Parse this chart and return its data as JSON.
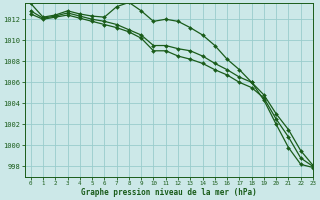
{
  "x": [
    0,
    1,
    2,
    3,
    4,
    5,
    6,
    7,
    8,
    9,
    10,
    11,
    12,
    13,
    14,
    15,
    16,
    17,
    18,
    19,
    20,
    21,
    22,
    23
  ],
  "line1": [
    1013.5,
    1012.2,
    1012.4,
    1012.8,
    1012.5,
    1012.3,
    1012.2,
    1013.2,
    1013.6,
    1012.8,
    1011.8,
    1012.0,
    1011.8,
    1011.2,
    1010.5,
    1009.5,
    1008.2,
    1007.2,
    1006.0,
    1004.3,
    1002.0,
    999.8,
    998.2,
    997.9
  ],
  "line2": [
    1012.8,
    1012.1,
    1012.3,
    1012.6,
    1012.3,
    1012.0,
    1011.8,
    1011.5,
    1011.0,
    1010.5,
    1009.5,
    1009.5,
    1009.2,
    1009.0,
    1008.5,
    1007.8,
    1007.2,
    1006.5,
    1006.0,
    1004.8,
    1003.0,
    1001.5,
    999.5,
    998.1
  ],
  "line3": [
    1012.5,
    1012.0,
    1012.2,
    1012.4,
    1012.1,
    1011.8,
    1011.5,
    1011.2,
    1010.8,
    1010.2,
    1009.0,
    1009.0,
    1008.5,
    1008.2,
    1007.8,
    1007.2,
    1006.7,
    1006.0,
    1005.5,
    1004.5,
    1002.5,
    1000.8,
    998.8,
    998.0
  ],
  "bg_color": "#cce8e8",
  "grid_color": "#99cccc",
  "line_color": "#1a5c1a",
  "xlabel": "Graphe pression niveau de la mer (hPa)",
  "ylim": [
    997.0,
    1013.5
  ],
  "yticks": [
    998,
    1000,
    1002,
    1004,
    1006,
    1008,
    1010,
    1012
  ],
  "xlim": [
    -0.5,
    23
  ],
  "xticks": [
    0,
    1,
    2,
    3,
    4,
    5,
    6,
    7,
    8,
    9,
    10,
    11,
    12,
    13,
    14,
    15,
    16,
    17,
    18,
    19,
    20,
    21,
    22,
    23
  ]
}
